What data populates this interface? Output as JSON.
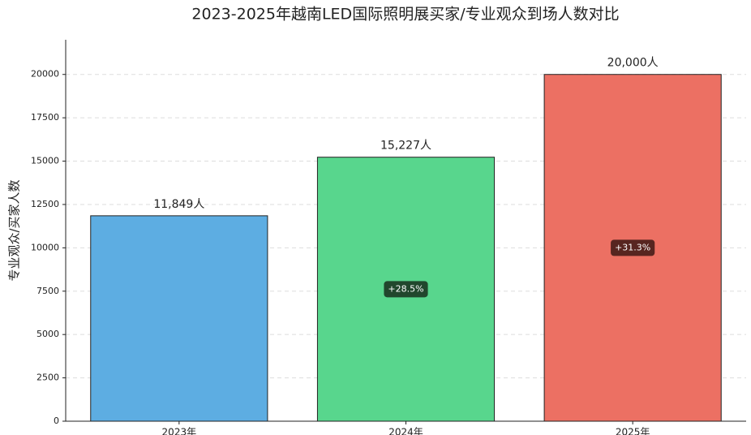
{
  "chart_data": {
    "type": "bar",
    "title": "2023-2025年越南LED国际照明展买家/专业观众到场人数对比",
    "ylabel": "专业观众/买家人数",
    "categories": [
      "2023年",
      "2024年",
      "2025年"
    ],
    "values": [
      11849,
      15227,
      20000
    ],
    "value_labels": [
      "11,849人",
      "15,227人",
      "20,000人"
    ],
    "growth_labels": [
      null,
      "+28.5%",
      "+31.3%"
    ],
    "colors": [
      "#5dade2",
      "#58d68d",
      "#ec7063"
    ],
    "ylim": [
      0,
      22000
    ],
    "yticks": [
      0,
      2500,
      5000,
      7500,
      10000,
      12500,
      15000,
      17500,
      20000
    ],
    "grid": true
  }
}
